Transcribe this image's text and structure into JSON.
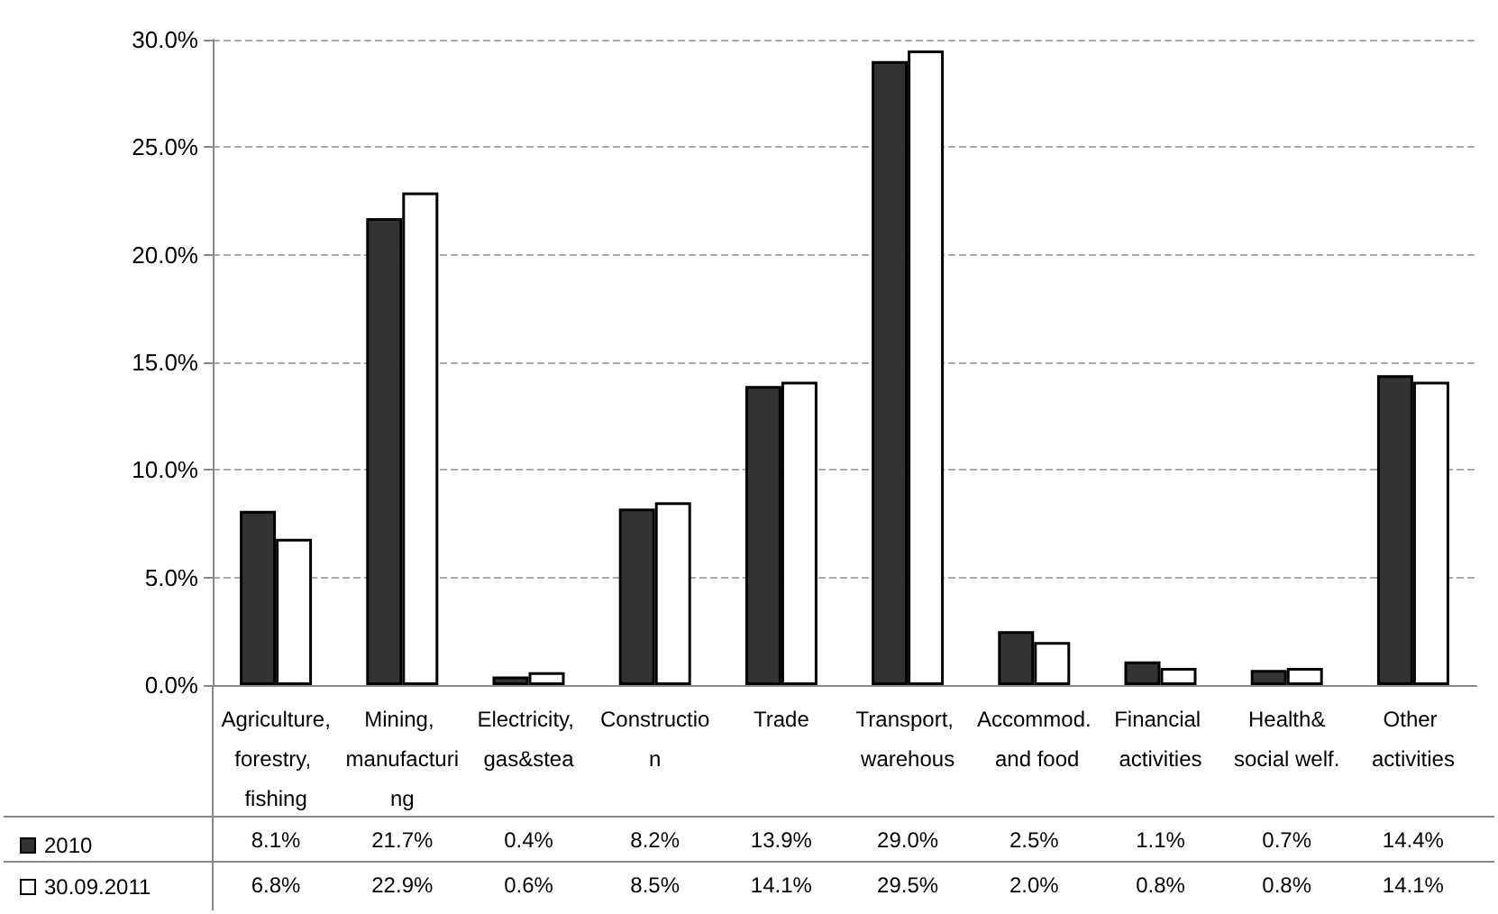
{
  "chart_data": {
    "type": "bar",
    "categories": [
      "Agriculture,forestry, fishing",
      "Mining, manufacturing",
      "Electricity, gas&stea",
      "Construction",
      "Trade",
      "Transport, warehous",
      "Accommod. and food",
      "Financial activities",
      "Health&social welf.",
      "Other activities"
    ],
    "series": [
      {
        "name": "2010",
        "color": "#333333",
        "values": [
          8.1,
          21.7,
          0.4,
          8.2,
          13.9,
          29.0,
          2.5,
          1.1,
          0.7,
          14.4
        ],
        "value_labels": [
          "8.1%",
          "21.7%",
          "0.4%",
          "8.2%",
          "13.9%",
          "29.0%",
          "2.5%",
          "1.1%",
          "0.7%",
          "14.4%"
        ]
      },
      {
        "name": "30.09.2011",
        "color": "#ffffff",
        "values": [
          6.8,
          22.9,
          0.6,
          8.5,
          14.1,
          29.5,
          2.0,
          0.8,
          0.8,
          14.1
        ],
        "value_labels": [
          "6.8%",
          "22.9%",
          "0.6%",
          "8.5%",
          "14.1%",
          "29.5%",
          "2.0%",
          "0.8%",
          "0.8%",
          "14.1%"
        ]
      }
    ],
    "ylim": [
      0,
      30
    ],
    "yticks": [
      {
        "value": 0,
        "label": "0.0%"
      },
      {
        "value": 5,
        "label": "5.0%"
      },
      {
        "value": 10,
        "label": "10.0%"
      },
      {
        "value": 15,
        "label": "15.0%"
      },
      {
        "value": 20,
        "label": "20.0%"
      },
      {
        "value": 25,
        "label": "25.0%"
      },
      {
        "value": 30,
        "label": "30.0%"
      }
    ],
    "grid": "y",
    "legend": "bottom left"
  }
}
